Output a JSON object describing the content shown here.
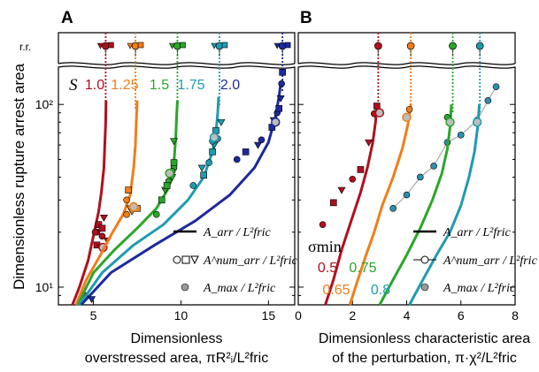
{
  "figure": {
    "ylabel": "Dimensionless rupture arrest area",
    "rr_label": "r.r.",
    "colors": {
      "red": "#b0101e",
      "orange": "#f07e1a",
      "green": "#2aa62a",
      "teal": "#1f9bb0",
      "blue": "#1c2a9c",
      "grey": "#9a9a9a"
    }
  },
  "chart_data": [
    {
      "panel": "A",
      "type": "scatter",
      "xlabel_line1": "Dimensionless",
      "xlabel_line2": "overstressed area, πR²ᵢ/L²fric",
      "xlim": [
        3,
        16.5
      ],
      "xticks": [
        "5",
        "10",
        "15"
      ],
      "ylim": [
        8,
        160
      ],
      "yscale": "log",
      "yticks": [
        "10¹",
        "10²"
      ],
      "param_symbol": "S",
      "series": [
        {
          "name": "1.0",
          "color": "#b0101e",
          "curve": [
            [
              3.8,
              8
            ],
            [
              4.2,
              10
            ],
            [
              4.7,
              14
            ],
            [
              5.05,
              20
            ],
            [
              5.3,
              26
            ],
            [
              5.45,
              33
            ],
            [
              5.6,
              45
            ],
            [
              5.65,
              60
            ],
            [
              5.7,
              80
            ],
            [
              5.72,
              105
            ]
          ],
          "points": [
            [
              4.5,
              9
            ],
            [
              5.2,
              17
            ],
            [
              5.4,
              16.5
            ],
            [
              5.2,
              20
            ],
            [
              5.3,
              22
            ],
            [
              5.6,
              24
            ],
            [
              5.5,
              19
            ],
            [
              5.5,
              21
            ],
            [
              5.8,
              18
            ],
            [
              5.1,
              20
            ]
          ],
          "rr_x": 5.7,
          "max": [
            5.55,
            16.5
          ]
        },
        {
          "name": "1.25",
          "color": "#f07e1a",
          "curve": [
            [
              4.0,
              8
            ],
            [
              4.6,
              11
            ],
            [
              5.4,
              15
            ],
            [
              6.1,
              20
            ],
            [
              6.7,
              25
            ],
            [
              7.1,
              32
            ],
            [
              7.3,
              45
            ],
            [
              7.4,
              60
            ],
            [
              7.45,
              80
            ],
            [
              7.5,
              105
            ]
          ],
          "points": [
            [
              6.9,
              30
            ],
            [
              7.0,
              34
            ],
            [
              7.1,
              27
            ],
            [
              7.3,
              28
            ],
            [
              7.5,
              27
            ],
            [
              7.2,
              26
            ],
            [
              6.9,
              25
            ]
          ],
          "rr_x": 7.4,
          "max": [
            7.3,
            27.5
          ]
        },
        {
          "name": "1.5",
          "color": "#2aa62a",
          "curve": [
            [
              4.1,
              8
            ],
            [
              5.0,
              12
            ],
            [
              6.2,
              16
            ],
            [
              7.5,
              21
            ],
            [
              8.6,
              27
            ],
            [
              9.3,
              35
            ],
            [
              9.6,
              48
            ],
            [
              9.7,
              65
            ],
            [
              9.75,
              85
            ],
            [
              9.8,
              105
            ]
          ],
          "points": [
            [
              8.6,
              25
            ],
            [
              8.9,
              30
            ],
            [
              9.1,
              34
            ],
            [
              9.3,
              38
            ],
            [
              9.2,
              36
            ],
            [
              9.5,
              40
            ],
            [
              9.6,
              45
            ],
            [
              9.6,
              48
            ],
            [
              9.6,
              63
            ],
            [
              9.5,
              43
            ]
          ],
          "rr_x": 9.8,
          "max": [
            9.35,
            42
          ]
        },
        {
          "name": "1.75",
          "color": "#1f9bb0",
          "curve": [
            [
              4.2,
              8
            ],
            [
              5.5,
              12
            ],
            [
              7.3,
              17
            ],
            [
              9.0,
              22
            ],
            [
              10.4,
              30
            ],
            [
              11.3,
              40
            ],
            [
              11.8,
              55
            ],
            [
              12.0,
              70
            ],
            [
              12.1,
              90
            ],
            [
              12.15,
              110
            ]
          ],
          "points": [
            [
              10.7,
              36
            ],
            [
              11.3,
              41
            ],
            [
              11.2,
              45
            ],
            [
              11.6,
              48
            ],
            [
              11.8,
              55
            ],
            [
              11.9,
              60
            ],
            [
              12.1,
              65
            ],
            [
              12.0,
              72
            ],
            [
              12.3,
              80
            ],
            [
              11.8,
              63
            ]
          ],
          "rr_x": 12.2,
          "max": [
            11.9,
            66
          ]
        },
        {
          "name": "2.0",
          "color": "#1c2a9c",
          "curve": [
            [
              4.3,
              8
            ],
            [
              6.0,
              12
            ],
            [
              8.5,
              17
            ],
            [
              10.8,
              23
            ],
            [
              12.8,
              32
            ],
            [
              14.2,
              45
            ],
            [
              15.0,
              62
            ],
            [
              15.4,
              85
            ],
            [
              15.6,
              110
            ],
            [
              15.7,
              130
            ]
          ],
          "points": [
            [
              13.2,
              50
            ],
            [
              13.7,
              55
            ],
            [
              14.4,
              60
            ],
            [
              14.6,
              64
            ],
            [
              15.2,
              75
            ],
            [
              15.3,
              82
            ],
            [
              15.5,
              90
            ],
            [
              15.6,
              95
            ],
            [
              15.7,
              108
            ],
            [
              15.75,
              130
            ],
            [
              15.8,
              150
            ],
            [
              4.9,
              8.6
            ]
          ],
          "rr_x": 15.8,
          "max": [
            15.4,
            80
          ]
        }
      ],
      "legend": [
        "A_arr / L²fric",
        "A^num_arr / L²fric",
        "A_max / L²fric"
      ]
    },
    {
      "panel": "B",
      "type": "line",
      "xlabel_line1": "Dimensionless characteristic area",
      "xlabel_line2": "of the perturbation, π·χ²/L²fric",
      "xlim": [
        0,
        8
      ],
      "xticks": [
        "0",
        "2",
        "4",
        "6",
        "8"
      ],
      "ylim": [
        8,
        160
      ],
      "yscale": "log",
      "param_symbol": "σmin",
      "series": [
        {
          "name": "0.5",
          "color": "#b0101e",
          "curve": [
            [
              1.0,
              8
            ],
            [
              1.3,
              11
            ],
            [
              1.6,
              16
            ],
            [
              1.95,
              23
            ],
            [
              2.3,
              33
            ],
            [
              2.55,
              45
            ],
            [
              2.75,
              62
            ],
            [
              2.85,
              80
            ],
            [
              2.9,
              100
            ]
          ],
          "points": [
            [
              0.9,
              22
            ],
            [
              1.3,
              29
            ],
            [
              1.6,
              34
            ],
            [
              2.0,
              39
            ],
            [
              2.3,
              44
            ],
            [
              2.6,
              62
            ],
            [
              2.8,
              89
            ],
            [
              2.9,
              98
            ]
          ],
          "rr_x": 2.95,
          "max": [
            3.0,
            90
          ]
        },
        {
          "name": "0.65",
          "color": "#f07e1a",
          "curve": [
            [
              1.9,
              8
            ],
            [
              2.2,
              11
            ],
            [
              2.5,
              15
            ],
            [
              2.8,
              20
            ],
            [
              3.1,
              28
            ],
            [
              3.5,
              40
            ],
            [
              3.85,
              58
            ],
            [
              4.05,
              78
            ],
            [
              4.15,
              100
            ]
          ],
          "points": [
            [
              4.1,
              94
            ]
          ],
          "rr_x": 4.15,
          "max": [
            4.0,
            85
          ]
        },
        {
          "name": "0.75",
          "color": "#2aa62a",
          "curve": [
            [
              3.0,
              8
            ],
            [
              3.5,
              11
            ],
            [
              4.0,
              15
            ],
            [
              4.5,
              21
            ],
            [
              4.95,
              30
            ],
            [
              5.3,
              42
            ],
            [
              5.5,
              57
            ],
            [
              5.6,
              75
            ],
            [
              5.65,
              100
            ]
          ],
          "points": [
            [
              5.5,
              85
            ]
          ],
          "rr_x": 5.7,
          "max": [
            5.6,
            80
          ]
        },
        {
          "name": "0.8",
          "color": "#1f9bb0",
          "curve": [
            [
              4.1,
              8
            ],
            [
              4.6,
              11
            ],
            [
              5.1,
              15
            ],
            [
              5.6,
              20
            ],
            [
              6.0,
              28
            ],
            [
              6.3,
              40
            ],
            [
              6.5,
              55
            ],
            [
              6.62,
              75
            ],
            [
              6.68,
              100
            ]
          ],
          "points": [
            [
              6.6,
              80
            ]
          ],
          "rr_x": 6.7,
          "max": [
            6.6,
            80
          ]
        }
      ],
      "grey_points": [
        [
          3.5,
          27
        ],
        [
          4.0,
          32
        ],
        [
          4.5,
          40
        ],
        [
          5.0,
          46
        ],
        [
          5.5,
          62
        ],
        [
          6.0,
          68
        ],
        [
          6.6,
          82
        ],
        [
          7.0,
          105
        ],
        [
          7.3,
          125
        ]
      ],
      "legend": [
        "A_arr / L²fric",
        "A^num_arr / L²fric",
        "A_max / L²fric"
      ]
    }
  ]
}
